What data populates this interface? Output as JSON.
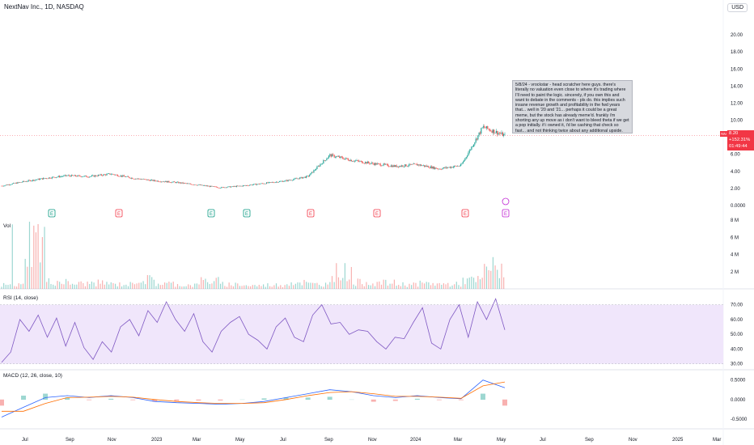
{
  "header": {
    "title": "NextNav Inc., 1D, NASDAQ",
    "currency": "USD"
  },
  "note": {
    "text": "5/8/24 - vrockstar - head scratcher here guys. there's literally no valuation even close to  where it's trading where I'll need to paint the logic. sincerely, if you own this and want to debate in the comments - pls do. this implies such insane revenue growth and profitability in the fwd years that... well in '20 and '21... perhaps it could be a great meme, but the stock has already meme'd. frankly i'm shorting any up move as i don't want to bleed theta if we get a pop initially. if i owned it, i'd be cashing that check so fast... and not thinking twice about any additional upside. bank it NOW."
  },
  "price_tag": {
    "symbol": "NN",
    "last": "8.20",
    "change": "+152.31%",
    "countdown": "01:49:44"
  },
  "panes": {
    "volume_label": "Vol",
    "rsi_label": "RSI (14, close)",
    "macd_label": "MACD (12, 26, close, 10)"
  },
  "colors": {
    "up": "#26a69a",
    "down": "#ef5350",
    "rsi_line": "#7e57c2",
    "rsi_band": "#f0e6fb",
    "macd_line": "#2962ff",
    "signal_line": "#ff6d00",
    "earnings_positive": "#089981",
    "earnings_negative": "#f23645",
    "earnings_upcoming": "#c026d3"
  },
  "chart_data": [
    {
      "type": "candlestick",
      "title": "NextNav Inc., 1D, NASDAQ",
      "y_ticks": [
        "20.00",
        "18.00",
        "16.00",
        "14.00",
        "12.00",
        "10.00",
        "8.00",
        "6.00",
        "4.00",
        "2.00",
        "0.0000"
      ],
      "ylim": [
        0,
        22
      ],
      "x_ticks": [
        "Jul",
        "Sep",
        "Nov",
        "2023",
        "Mar",
        "May",
        "Jul",
        "Sep",
        "Nov",
        "2024",
        "Mar",
        "May",
        "Jul",
        "Sep",
        "Nov",
        "2025",
        "Mar"
      ],
      "x": [
        "2022-06",
        "2022-07",
        "2022-08",
        "2022-09",
        "2022-10",
        "2022-11",
        "2022-12",
        "2023-01",
        "2023-02",
        "2023-03",
        "2023-04",
        "2023-05",
        "2023-06",
        "2023-07",
        "2023-08",
        "2023-09",
        "2023-10",
        "2023-11",
        "2023-12",
        "2024-01",
        "2024-02",
        "2024-03",
        "2024-04",
        "2024-05"
      ],
      "close": [
        2.3,
        2.8,
        3.2,
        3.5,
        3.4,
        3.7,
        3.2,
        2.9,
        2.7,
        2.4,
        2.1,
        2.3,
        2.6,
        2.9,
        3.4,
        5.9,
        5.3,
        4.9,
        4.6,
        4.8,
        4.3,
        4.7,
        9.2,
        8.2
      ],
      "earnings_markers": [
        "E",
        "E",
        "E",
        "E",
        "E",
        "E",
        "E",
        "E"
      ],
      "earnings_kind": [
        "positive",
        "negative",
        "positive",
        "positive",
        "negative",
        "negative",
        "negative",
        "upcoming"
      ]
    },
    {
      "type": "bar",
      "title": "Vol",
      "y_ticks": [
        "8 M",
        "6 M",
        "4 M",
        "2 M"
      ],
      "ylim": [
        0,
        8
      ],
      "values_millions": [
        0.6,
        7.5,
        1.1,
        0.8,
        0.9,
        0.7,
        1.4,
        0.8,
        0.6,
        1.2,
        0.7,
        0.5,
        0.6,
        1.0,
        0.7,
        2.6,
        1.0,
        0.9,
        0.7,
        0.8,
        0.7,
        1.3,
        3.2,
        1.8
      ]
    },
    {
      "type": "line",
      "title": "RSI (14, close)",
      "y_ticks": [
        "70.00",
        "60.00",
        "50.00",
        "40.00",
        "30.00"
      ],
      "ylim": [
        26,
        78
      ],
      "band": [
        30,
        70
      ],
      "values": [
        31,
        38,
        60,
        52,
        63,
        48,
        61,
        42,
        58,
        41,
        33,
        45,
        38,
        55,
        60,
        49,
        66,
        58,
        72,
        60,
        52,
        64,
        45,
        38,
        52,
        58,
        62,
        50,
        46,
        40,
        55,
        61,
        48,
        45,
        63,
        70,
        57,
        58,
        50,
        53,
        52,
        45,
        40,
        48,
        47,
        58,
        68,
        44,
        40,
        60,
        70,
        48,
        72,
        60,
        74,
        53
      ]
    },
    {
      "type": "line",
      "title": "MACD (12, 26, close, 10)",
      "y_ticks": [
        "0.5000",
        "0.0000",
        "-0.5000"
      ],
      "ylim": [
        -0.75,
        0.7
      ],
      "macd": [
        -0.45,
        -0.2,
        0.05,
        0.1,
        0.05,
        0.1,
        0.05,
        -0.05,
        -0.08,
        -0.1,
        -0.12,
        -0.1,
        -0.05,
        0.05,
        0.15,
        0.25,
        0.2,
        0.1,
        0.05,
        0.1,
        0.05,
        0.02,
        0.5,
        0.3
      ],
      "signal": [
        -0.3,
        -0.3,
        -0.1,
        0.05,
        0.06,
        0.08,
        0.06,
        0.0,
        -0.05,
        -0.08,
        -0.1,
        -0.1,
        -0.08,
        0.0,
        0.1,
        0.18,
        0.2,
        0.15,
        0.08,
        0.08,
        0.06,
        0.03,
        0.35,
        0.45
      ]
    }
  ]
}
